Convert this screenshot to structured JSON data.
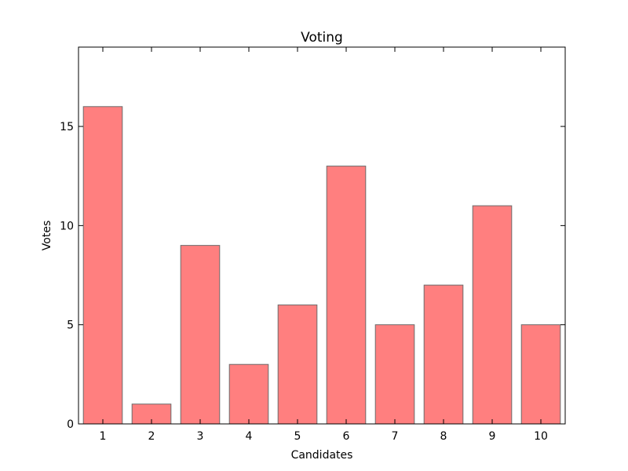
{
  "chart_data": {
    "type": "bar",
    "title": "Voting",
    "xlabel": "Candidates",
    "ylabel": "Votes",
    "categories": [
      "1",
      "2",
      "3",
      "4",
      "5",
      "6",
      "7",
      "8",
      "9",
      "10"
    ],
    "values": [
      16,
      1,
      9,
      3,
      6,
      13,
      5,
      7,
      11,
      5
    ],
    "ylim": [
      0,
      19
    ],
    "yticks": [
      0,
      5,
      10,
      15
    ],
    "grid": false,
    "bar_color": "#ff7f7f",
    "bar_edge_color": "#6b6b6b"
  }
}
